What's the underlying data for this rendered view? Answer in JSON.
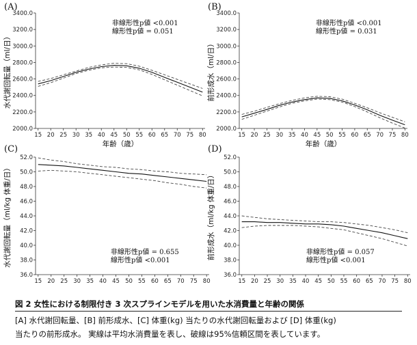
{
  "caption": {
    "title": "図 2 女性における制限付き 3 次スプラインモデルを用いた水消費量と年齢の関係",
    "line1": "[A] 水代謝回転量、[B] 前形成水、[C] 体重(kg) 当たりの水代謝回転量および [D] 体重(kg)",
    "line2": "当たりの前形成水。 実線は平均水消費量を表し、破線は95%信頼区間を表しています。"
  },
  "chart_data": [
    {
      "panel": "(A)",
      "type": "line",
      "xlabel": "年齢（歳）",
      "ylabel": "水代謝回転量（ml/日）",
      "xlim": [
        14,
        81
      ],
      "ylim": [
        2000,
        3400
      ],
      "xticks": [
        "15",
        "20",
        "25",
        "30",
        "35",
        "40",
        "45",
        "50",
        "55",
        "60",
        "65",
        "70",
        "75",
        "80"
      ],
      "yticks": [
        "2000.0",
        "2200.0",
        "2400.0",
        "2600.0",
        "2800.0",
        "3000.0",
        "3200.0",
        "3400.0"
      ],
      "annotation": {
        "line1": "非線形性p値 <0.001",
        "line2": "線形性p値 = 0.051",
        "position": "top-right"
      },
      "x": [
        15,
        20,
        25,
        30,
        35,
        40,
        45,
        50,
        55,
        60,
        65,
        70,
        75,
        80
      ],
      "series": [
        {
          "style": "solid",
          "values": [
            2540,
            2580,
            2630,
            2680,
            2720,
            2750,
            2765,
            2760,
            2730,
            2680,
            2620,
            2560,
            2500,
            2440
          ]
        },
        {
          "style": "dashed",
          "values": [
            2510,
            2555,
            2610,
            2665,
            2705,
            2735,
            2745,
            2740,
            2710,
            2655,
            2590,
            2525,
            2460,
            2395
          ]
        },
        {
          "style": "dashed",
          "values": [
            2570,
            2605,
            2650,
            2695,
            2740,
            2770,
            2790,
            2785,
            2755,
            2705,
            2650,
            2595,
            2540,
            2485
          ]
        }
      ]
    },
    {
      "panel": "(B)",
      "type": "line",
      "xlabel": "年齢（歳）",
      "ylabel": "前形成水（ml/日）",
      "xlim": [
        14,
        81
      ],
      "ylim": [
        2000,
        3400
      ],
      "xticks": [
        "15",
        "20",
        "25",
        "30",
        "35",
        "40",
        "45",
        "50",
        "55",
        "60",
        "65",
        "70",
        "75",
        "80"
      ],
      "yticks": [
        "2000.0",
        "2200.0",
        "2400.0",
        "2600.0",
        "2800.0",
        "3000.0",
        "3200.0",
        "3400.0"
      ],
      "annotation": {
        "line1": "非線形性p値 <0.001",
        "line2": "線形性p値 = 0.031",
        "position": "top-right"
      },
      "x": [
        15,
        20,
        25,
        30,
        35,
        40,
        45,
        50,
        55,
        60,
        65,
        70,
        75,
        80
      ],
      "series": [
        {
          "style": "solid",
          "values": [
            2140,
            2185,
            2230,
            2280,
            2320,
            2350,
            2370,
            2365,
            2335,
            2285,
            2225,
            2160,
            2100,
            2045
          ]
        },
        {
          "style": "dashed",
          "values": [
            2110,
            2160,
            2210,
            2260,
            2305,
            2335,
            2355,
            2350,
            2320,
            2265,
            2200,
            2130,
            2065,
            2005
          ]
        },
        {
          "style": "dashed",
          "values": [
            2170,
            2210,
            2255,
            2300,
            2340,
            2370,
            2390,
            2385,
            2355,
            2305,
            2250,
            2190,
            2135,
            2080
          ]
        }
      ]
    },
    {
      "panel": "(C)",
      "type": "line",
      "xlabel": "",
      "ylabel": "水代謝回転量（ml/kg 体重/日）",
      "xlim": [
        14,
        81
      ],
      "ylim": [
        36,
        52
      ],
      "xticks": [
        "15",
        "20",
        "25",
        "30",
        "35",
        "40",
        "45",
        "50",
        "55",
        "60",
        "65",
        "70",
        "75",
        "80"
      ],
      "yticks": [
        "36.0",
        "38.0",
        "40.0",
        "42.0",
        "44.0",
        "46.0",
        "48.0",
        "50.0",
        "52.0"
      ],
      "annotation": {
        "line1": "非線形性p値 = 0.655",
        "line2": "線形性p値 <0.001",
        "position": "bottom-center"
      },
      "x": [
        15,
        20,
        25,
        30,
        35,
        40,
        45,
        50,
        55,
        60,
        65,
        70,
        75,
        80
      ],
      "series": [
        {
          "style": "solid",
          "values": [
            51.0,
            50.9,
            50.8,
            50.6,
            50.4,
            50.2,
            50.0,
            49.8,
            49.7,
            49.5,
            49.3,
            49.1,
            48.9,
            48.7
          ]
        },
        {
          "style": "dashed",
          "values": [
            50.1,
            50.2,
            50.1,
            50.0,
            49.8,
            49.6,
            49.4,
            49.2,
            49.0,
            48.8,
            48.5,
            48.3,
            48.0,
            47.8
          ]
        },
        {
          "style": "dashed",
          "values": [
            51.9,
            51.6,
            51.4,
            51.1,
            50.9,
            50.7,
            50.6,
            50.4,
            50.3,
            50.1,
            50.0,
            49.8,
            49.7,
            49.6
          ]
        }
      ]
    },
    {
      "panel": "(D)",
      "type": "line",
      "xlabel": "",
      "ylabel": "前形成水（ml/kg 体重/日）",
      "xlim": [
        14,
        81
      ],
      "ylim": [
        36,
        52
      ],
      "xticks": [
        "15",
        "20",
        "25",
        "30",
        "35",
        "40",
        "45",
        "50",
        "55",
        "60",
        "65",
        "70",
        "75",
        "80"
      ],
      "yticks": [
        "36.0",
        "38.0",
        "40.0",
        "42.0",
        "44.0",
        "46.0",
        "48.0",
        "50.0",
        "52.0"
      ],
      "annotation": {
        "line1": "非線形性p値 = 0.057",
        "line2": "線形性p値 <0.001",
        "position": "bottom-right"
      },
      "x": [
        15,
        20,
        25,
        30,
        35,
        40,
        45,
        50,
        55,
        60,
        65,
        70,
        75,
        80
      ],
      "series": [
        {
          "style": "solid",
          "values": [
            43.2,
            43.2,
            43.1,
            43.1,
            43.0,
            42.9,
            42.9,
            42.8,
            42.6,
            42.3,
            42.0,
            41.7,
            41.3,
            40.9
          ]
        },
        {
          "style": "dashed",
          "values": [
            42.4,
            42.6,
            42.7,
            42.7,
            42.7,
            42.6,
            42.5,
            42.3,
            42.1,
            41.7,
            41.3,
            40.9,
            40.4,
            39.9
          ]
        },
        {
          "style": "dashed",
          "values": [
            44.0,
            43.8,
            43.6,
            43.5,
            43.4,
            43.3,
            43.2,
            43.2,
            43.1,
            42.9,
            42.7,
            42.4,
            42.1,
            41.7
          ]
        }
      ]
    }
  ]
}
